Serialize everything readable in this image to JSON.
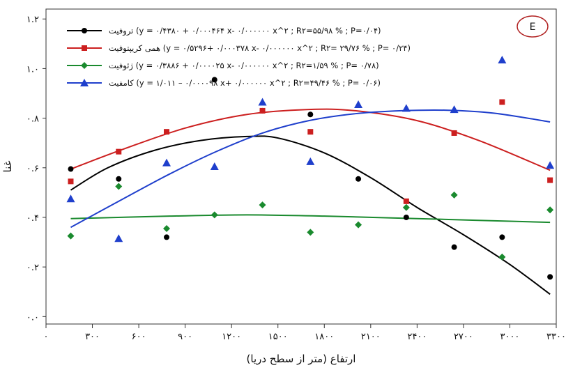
{
  "chart_data": {
    "type": "scatter",
    "panel_label": "E",
    "xlabel": "ارتفاع (متر از سطح دریا)",
    "ylabel": "غنا",
    "xlim": [
      0,
      3300
    ],
    "ylim": [
      -0.03,
      1.24
    ],
    "x_ticks": [
      {
        "value": 0,
        "label": "۰"
      },
      {
        "value": 300,
        "label": "۳۰۰"
      },
      {
        "value": 600,
        "label": "۶۰۰"
      },
      {
        "value": 900,
        "label": "۹۰۰"
      },
      {
        "value": 1200,
        "label": "۱۲۰۰"
      },
      {
        "value": 1500,
        "label": "۱۵۰۰"
      },
      {
        "value": 1800,
        "label": "۱۸۰۰"
      },
      {
        "value": 2100,
        "label": "۲۱۰۰"
      },
      {
        "value": 2400,
        "label": "۲۴۰۰"
      },
      {
        "value": 2700,
        "label": "۲۷۰۰"
      },
      {
        "value": 3000,
        "label": "۳۰۰۰"
      },
      {
        "value": 3300,
        "label": "۳۳۰۰"
      }
    ],
    "y_ticks": [
      {
        "value": 0,
        "label": "۰.۰"
      },
      {
        "value": 0.2,
        "label": "۰.۲"
      },
      {
        "value": 0.4,
        "label": "۰.۴"
      },
      {
        "value": 0.6,
        "label": "۰.۶"
      },
      {
        "value": 0.8,
        "label": "۰.۸"
      },
      {
        "value": 1.0,
        "label": "۱.۰"
      },
      {
        "value": 1.2,
        "label": "۱.۲"
      }
    ],
    "series": [
      {
        "name": "تروفیت",
        "equation": "(y = ۰/۴۳۸۰ + ۰/۰۰۰۴۶۴ x- ۰/۰۰۰۰۰۰ x^۲ ; R۲=۵۵/۹۸ % ; P=۰/۰۴)",
        "color": "#000000",
        "marker": "circle",
        "x": [
          160,
          470,
          780,
          1090,
          1400,
          1710,
          2020,
          2330,
          2640,
          2950,
          3260
        ],
        "y": [
          0.595,
          0.555,
          0.32,
          0.955,
          0.83,
          0.815,
          0.555,
          0.4,
          0.28,
          0.32,
          0.16
        ],
        "curve": [
          {
            "x": 160,
            "y": 0.51
          },
          {
            "x": 400,
            "y": 0.6
          },
          {
            "x": 700,
            "y": 0.67
          },
          {
            "x": 1000,
            "y": 0.71
          },
          {
            "x": 1300,
            "y": 0.726
          },
          {
            "x": 1500,
            "y": 0.72
          },
          {
            "x": 1800,
            "y": 0.66
          },
          {
            "x": 2100,
            "y": 0.56
          },
          {
            "x": 2400,
            "y": 0.44
          },
          {
            "x": 2700,
            "y": 0.33
          },
          {
            "x": 3000,
            "y": 0.21
          },
          {
            "x": 3260,
            "y": 0.09
          }
        ]
      },
      {
        "name": "همی کریپتوفیت",
        "equation": "(y = ۰/۵۲۹۶+ ۰/۰۰۰۳۷۸ x- ۰/۰۰۰۰۰۰ x^۲ ; R۲= ۲۹/۷۶ % ; P= ۰/۲۴)",
        "color": "#cc1f1f",
        "marker": "square",
        "x": [
          160,
          470,
          780,
          1400,
          1710,
          2330,
          2640,
          2950,
          3260
        ],
        "y": [
          0.545,
          0.665,
          0.745,
          0.83,
          0.745,
          0.465,
          0.74,
          0.865,
          0.55
        ],
        "curve": [
          {
            "x": 160,
            "y": 0.595
          },
          {
            "x": 500,
            "y": 0.675
          },
          {
            "x": 900,
            "y": 0.76
          },
          {
            "x": 1300,
            "y": 0.815
          },
          {
            "x": 1700,
            "y": 0.835
          },
          {
            "x": 2000,
            "y": 0.83
          },
          {
            "x": 2400,
            "y": 0.79
          },
          {
            "x": 2800,
            "y": 0.71
          },
          {
            "x": 3260,
            "y": 0.59
          }
        ]
      },
      {
        "name": "ژئوفیت",
        "equation": "(y = ۰/۳۸۸۶ + ۰/۰۰۰۰۲۵ x- ۰/۰۰۰۰۰۰ x^۲ ; R۲=۱/۵۹ % ; P= ۰/۷۸)",
        "color": "#1a8a2e",
        "marker": "diamond",
        "x": [
          160,
          470,
          780,
          1090,
          1400,
          1710,
          2020,
          2330,
          2640,
          2950,
          3260
        ],
        "y": [
          0.325,
          0.525,
          0.355,
          0.41,
          0.45,
          0.34,
          0.37,
          0.44,
          0.49,
          0.24,
          0.43
        ],
        "curve": [
          {
            "x": 160,
            "y": 0.395
          },
          {
            "x": 800,
            "y": 0.405
          },
          {
            "x": 1300,
            "y": 0.41
          },
          {
            "x": 1800,
            "y": 0.405
          },
          {
            "x": 2400,
            "y": 0.395
          },
          {
            "x": 3260,
            "y": 0.38
          }
        ]
      },
      {
        "name": "کامفیت",
        "equation": "(y = ۱/۰۱۱ – ۰/۰۰۰۰۹۸ x+ ۰/۰۰۰۰۰۰ x^۲ ; R۲=۴۹/۴۶ % ; P= ۰/۰۶)",
        "color": "#1f3fcc",
        "marker": "triangle",
        "x": [
          160,
          470,
          780,
          1090,
          1400,
          1710,
          2020,
          2330,
          2640,
          2950,
          3260
        ],
        "y": [
          0.475,
          0.315,
          0.62,
          0.605,
          0.865,
          0.625,
          0.855,
          0.84,
          0.835,
          1.035,
          0.61
        ],
        "curve": [
          {
            "x": 160,
            "y": 0.36
          },
          {
            "x": 500,
            "y": 0.475
          },
          {
            "x": 800,
            "y": 0.575
          },
          {
            "x": 1100,
            "y": 0.665
          },
          {
            "x": 1400,
            "y": 0.74
          },
          {
            "x": 1700,
            "y": 0.79
          },
          {
            "x": 2000,
            "y": 0.818
          },
          {
            "x": 2300,
            "y": 0.83
          },
          {
            "x": 2600,
            "y": 0.832
          },
          {
            "x": 2900,
            "y": 0.82
          },
          {
            "x": 3260,
            "y": 0.785
          }
        ]
      }
    ]
  }
}
